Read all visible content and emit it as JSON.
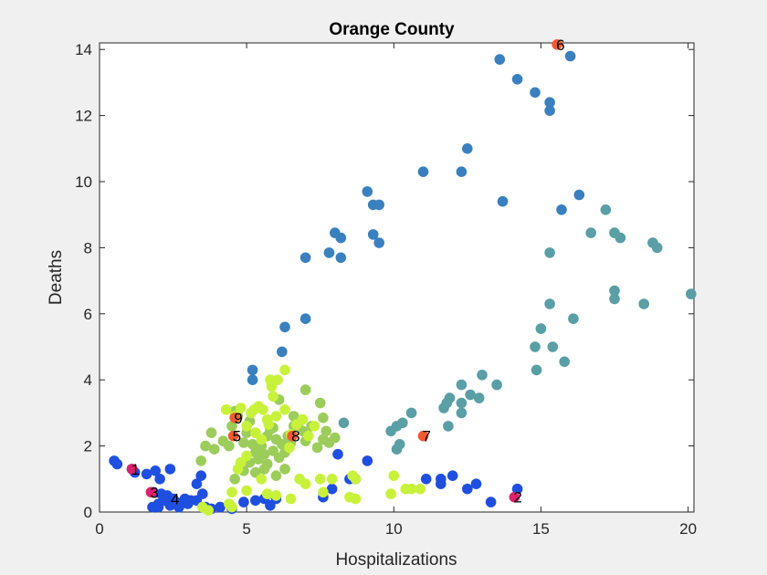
{
  "chart_data": {
    "type": "scatter",
    "title": "Orange County",
    "xlabel": "Hospitalizations",
    "ylabel": "Deaths",
    "xlim": [
      0,
      20.2
    ],
    "ylim": [
      0,
      14.2
    ],
    "xticks": [
      0,
      5,
      10,
      15,
      20
    ],
    "yticks": [
      0,
      2,
      4,
      6,
      8,
      10,
      12,
      14
    ],
    "grid": false,
    "colors": {
      "background": "#f0f0f0",
      "axes_bg": "#ffffff",
      "blue": "#1f4fe0",
      "steel": "#3a80bf",
      "teal": "#5a9ea6",
      "lightgreen": "#9ccc5a",
      "yellowgreen": "#c8f23a",
      "highlight_red": "#f25a2e",
      "highlight_pink": "#e0206e"
    },
    "series": [
      {
        "color": "#3a80bf",
        "points": [
          [
            13.6,
            13.7
          ],
          [
            14.2,
            13.1
          ],
          [
            14.8,
            12.7
          ],
          [
            15.3,
            12.4
          ],
          [
            15.3,
            12.15
          ],
          [
            16.0,
            13.8
          ],
          [
            12.5,
            11.0
          ],
          [
            11.0,
            10.3
          ],
          [
            12.3,
            10.3
          ],
          [
            9.1,
            9.7
          ],
          [
            9.3,
            9.3
          ],
          [
            9.5,
            9.3
          ],
          [
            9.3,
            8.4
          ],
          [
            9.5,
            8.15
          ],
          [
            7.0,
            7.7
          ],
          [
            7.8,
            7.85
          ],
          [
            8.0,
            8.45
          ],
          [
            8.2,
            8.3
          ],
          [
            8.2,
            7.7
          ],
          [
            7.0,
            5.85
          ],
          [
            6.3,
            5.6
          ],
          [
            6.2,
            4.85
          ],
          [
            5.2,
            4.3
          ],
          [
            5.2,
            4.0
          ],
          [
            13.7,
            9.4
          ],
          [
            15.7,
            9.15
          ],
          [
            16.3,
            9.6
          ]
        ]
      },
      {
        "color": "#5a9ea6",
        "points": [
          [
            16.7,
            8.45
          ],
          [
            17.2,
            9.15
          ],
          [
            17.5,
            8.45
          ],
          [
            17.7,
            8.3
          ],
          [
            18.8,
            8.15
          ],
          [
            18.95,
            8.0
          ],
          [
            17.5,
            6.7
          ],
          [
            17.5,
            6.45
          ],
          [
            18.5,
            6.3
          ],
          [
            20.1,
            6.6
          ],
          [
            15.3,
            7.85
          ],
          [
            15.3,
            6.3
          ],
          [
            16.1,
            5.85
          ],
          [
            15.0,
            5.55
          ],
          [
            15.4,
            5.0
          ],
          [
            14.8,
            5.0
          ],
          [
            15.8,
            4.55
          ],
          [
            14.85,
            4.3
          ],
          [
            13.0,
            4.15
          ],
          [
            12.3,
            3.85
          ],
          [
            13.5,
            3.85
          ],
          [
            11.9,
            3.45
          ],
          [
            11.8,
            3.3
          ],
          [
            12.3,
            3.3
          ],
          [
            12.6,
            3.55
          ],
          [
            12.9,
            3.45
          ],
          [
            11.7,
            3.15
          ],
          [
            12.3,
            3.0
          ],
          [
            11.85,
            2.6
          ],
          [
            10.6,
            3.0
          ],
          [
            10.3,
            2.7
          ],
          [
            10.1,
            2.6
          ],
          [
            9.9,
            2.45
          ],
          [
            10.2,
            2.05
          ],
          [
            10.1,
            1.9
          ],
          [
            8.3,
            2.7
          ]
        ]
      },
      {
        "color": "#1f4fe0",
        "points": [
          [
            0.5,
            1.55
          ],
          [
            0.6,
            1.45
          ],
          [
            1.1,
            1.3
          ],
          [
            1.2,
            1.2
          ],
          [
            1.6,
            1.15
          ],
          [
            1.9,
            1.25
          ],
          [
            2.05,
            1.0
          ],
          [
            1.8,
            0.6
          ],
          [
            2.1,
            0.55
          ],
          [
            2.4,
            1.3
          ],
          [
            2.3,
            0.5
          ],
          [
            2.5,
            0.4
          ],
          [
            2.2,
            0.35
          ],
          [
            2.6,
            0.3
          ],
          [
            2.0,
            0.25
          ],
          [
            2.4,
            0.2
          ],
          [
            2.7,
            0.15
          ],
          [
            1.8,
            0.15
          ],
          [
            2.0,
            0.15
          ],
          [
            2.9,
            0.4
          ],
          [
            3.1,
            0.35
          ],
          [
            3.0,
            0.25
          ],
          [
            3.3,
            0.35
          ],
          [
            3.3,
            0.85
          ],
          [
            3.45,
            1.1
          ],
          [
            3.5,
            0.55
          ],
          [
            3.6,
            0.15
          ],
          [
            3.8,
            0.1
          ],
          [
            4.1,
            0.15
          ],
          [
            4.5,
            0.1
          ],
          [
            4.9,
            0.3
          ],
          [
            5.3,
            0.35
          ],
          [
            5.6,
            0.4
          ],
          [
            6.0,
            0.4
          ],
          [
            5.8,
            0.2
          ],
          [
            7.6,
            0.45
          ],
          [
            7.9,
            0.7
          ],
          [
            8.1,
            1.75
          ],
          [
            8.5,
            1.0
          ],
          [
            8.7,
            1.0
          ],
          [
            9.1,
            1.55
          ],
          [
            11.1,
            1.0
          ],
          [
            11.6,
            1.0
          ],
          [
            11.6,
            0.85
          ],
          [
            12.0,
            1.1
          ],
          [
            12.5,
            0.7
          ],
          [
            12.8,
            0.85
          ],
          [
            13.3,
            0.3
          ],
          [
            14.2,
            0.7
          ]
        ]
      },
      {
        "color": "#9ccc5a",
        "points": [
          [
            3.45,
            1.55
          ],
          [
            3.6,
            2.0
          ],
          [
            3.8,
            2.4
          ],
          [
            3.9,
            1.9
          ],
          [
            4.2,
            2.15
          ],
          [
            4.4,
            2.0
          ],
          [
            4.5,
            2.6
          ],
          [
            4.7,
            2.9
          ],
          [
            4.6,
            3.05
          ],
          [
            4.9,
            2.1
          ],
          [
            5.0,
            2.4
          ],
          [
            5.1,
            2.75
          ],
          [
            5.2,
            2.05
          ],
          [
            5.3,
            1.8
          ],
          [
            5.4,
            1.6
          ],
          [
            5.5,
            2.0
          ],
          [
            5.6,
            1.75
          ],
          [
            5.7,
            1.45
          ],
          [
            5.7,
            2.3
          ],
          [
            5.8,
            2.5
          ],
          [
            5.9,
            1.85
          ],
          [
            6.0,
            2.2
          ],
          [
            6.1,
            1.65
          ],
          [
            6.2,
            2.05
          ],
          [
            6.3,
            1.8
          ],
          [
            6.4,
            2.3
          ],
          [
            6.5,
            2.1
          ],
          [
            6.6,
            2.6
          ],
          [
            6.8,
            2.75
          ],
          [
            6.9,
            2.45
          ],
          [
            7.0,
            2.15
          ],
          [
            7.2,
            2.6
          ],
          [
            7.5,
            3.3
          ],
          [
            7.6,
            2.85
          ],
          [
            7.7,
            2.45
          ],
          [
            7.8,
            2.1
          ],
          [
            7.6,
            2.2
          ],
          [
            8.0,
            2.25
          ],
          [
            7.4,
            1.95
          ],
          [
            5.1,
            1.5
          ],
          [
            5.3,
            1.2
          ],
          [
            4.9,
            1.25
          ],
          [
            4.6,
            1.0
          ],
          [
            5.6,
            1.3
          ],
          [
            6.0,
            1.1
          ],
          [
            6.3,
            1.3
          ],
          [
            7.0,
            3.7
          ],
          [
            6.6,
            2.9
          ],
          [
            6.1,
            3.4
          ],
          [
            5.9,
            2.55
          ]
        ]
      },
      {
        "color": "#c8f23a",
        "points": [
          [
            4.3,
            3.1
          ],
          [
            4.6,
            2.9
          ],
          [
            4.8,
            3.15
          ],
          [
            5.0,
            2.6
          ],
          [
            5.15,
            3.0
          ],
          [
            5.25,
            3.1
          ],
          [
            5.4,
            3.2
          ],
          [
            5.55,
            3.1
          ],
          [
            5.7,
            2.8
          ],
          [
            5.9,
            3.5
          ],
          [
            5.85,
            3.8
          ],
          [
            5.8,
            4.0
          ],
          [
            6.05,
            4.0
          ],
          [
            6.3,
            4.3
          ],
          [
            6.3,
            3.1
          ],
          [
            6.0,
            2.9
          ],
          [
            5.75,
            2.65
          ],
          [
            6.5,
            2.35
          ],
          [
            6.7,
            2.65
          ],
          [
            6.9,
            2.8
          ],
          [
            7.3,
            2.6
          ],
          [
            7.1,
            2.3
          ],
          [
            6.45,
            1.95
          ],
          [
            5.3,
            2.4
          ],
          [
            5.5,
            2.2
          ],
          [
            5.0,
            1.7
          ],
          [
            4.7,
            1.3
          ],
          [
            4.8,
            1.5
          ],
          [
            5.5,
            1.0
          ],
          [
            5.0,
            0.65
          ],
          [
            4.5,
            0.6
          ],
          [
            4.4,
            0.25
          ],
          [
            4.5,
            0.15
          ],
          [
            5.7,
            0.55
          ],
          [
            6.0,
            0.5
          ],
          [
            6.5,
            0.4
          ],
          [
            6.8,
            1.0
          ],
          [
            7.0,
            0.85
          ],
          [
            7.5,
            1.0
          ],
          [
            7.6,
            0.6
          ],
          [
            7.9,
            1.0
          ],
          [
            8.6,
            1.1
          ],
          [
            8.7,
            1.0
          ],
          [
            8.5,
            0.45
          ],
          [
            8.7,
            0.4
          ],
          [
            9.9,
            0.55
          ],
          [
            10.0,
            1.1
          ],
          [
            10.4,
            0.7
          ],
          [
            10.6,
            0.7
          ],
          [
            10.9,
            0.7
          ],
          [
            3.5,
            0.15
          ],
          [
            3.7,
            0.05
          ]
        ]
      }
    ],
    "annotations": [
      {
        "label": "1",
        "x": 1.1,
        "y": 1.3,
        "color": "#e0206e"
      },
      {
        "label": "2",
        "x": 14.1,
        "y": 0.45,
        "color": "#e0206e"
      },
      {
        "label": "3",
        "x": 1.75,
        "y": 0.6,
        "color": "#e0206e"
      },
      {
        "label": "4",
        "x": 2.45,
        "y": 0.4,
        "color": "#1f4fe0"
      },
      {
        "label": "5",
        "x": 4.55,
        "y": 2.3,
        "color": "#f25a2e"
      },
      {
        "label": "6",
        "x": 15.55,
        "y": 14.15,
        "color": "#f25a2e"
      },
      {
        "label": "7",
        "x": 11.0,
        "y": 2.3,
        "color": "#f25a2e"
      },
      {
        "label": "8",
        "x": 6.55,
        "y": 2.3,
        "color": "#f25a2e"
      },
      {
        "label": "9",
        "x": 4.6,
        "y": 2.85,
        "color": "#f25a2e"
      }
    ]
  }
}
